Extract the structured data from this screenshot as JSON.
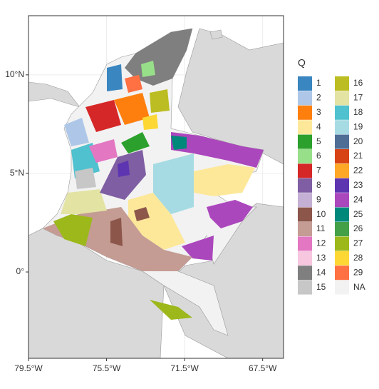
{
  "map": {
    "x_axis": {
      "lim": [
        -79.5,
        -66.43
      ],
      "ticks": [
        {
          "value": -79.5,
          "label": "79.5°W"
        },
        {
          "value": -75.5,
          "label": "75.5°W"
        },
        {
          "value": -71.5,
          "label": "71.5°W"
        },
        {
          "value": -67.5,
          "label": "67.5°W"
        }
      ]
    },
    "y_axis": {
      "lim": [
        -4.38,
        13.0
      ],
      "ticks": [
        {
          "value": 0,
          "label": "0°"
        },
        {
          "value": 5,
          "label": "5°N"
        },
        {
          "value": 10,
          "label": "10°N"
        }
      ]
    },
    "legend": {
      "title": "Q",
      "entries": [
        {
          "label": "1",
          "color": "#3a86c0"
        },
        {
          "label": "2",
          "color": "#aec7e8"
        },
        {
          "label": "3",
          "color": "#ff7f0e"
        },
        {
          "label": "4",
          "color": "#fde89a"
        },
        {
          "label": "5",
          "color": "#2ca02c"
        },
        {
          "label": "6",
          "color": "#98df8a"
        },
        {
          "label": "7",
          "color": "#d62728"
        },
        {
          "label": "8",
          "color": "#7f5ea3"
        },
        {
          "label": "9",
          "color": "#c5b0d5"
        },
        {
          "label": "10",
          "color": "#8c564b"
        },
        {
          "label": "11",
          "color": "#c49c94"
        },
        {
          "label": "12",
          "color": "#e377c2"
        },
        {
          "label": "13",
          "color": "#f7c6df"
        },
        {
          "label": "14",
          "color": "#7f7f7f"
        },
        {
          "label": "15",
          "color": "#c7c7c7"
        },
        {
          "label": "16",
          "color": "#bcbd22"
        },
        {
          "label": "17",
          "color": "#e3e3a3"
        },
        {
          "label": "18",
          "color": "#4fc1cf"
        },
        {
          "label": "19",
          "color": "#a6dbe3"
        },
        {
          "label": "20",
          "color": "#4e6e96"
        },
        {
          "label": "21",
          "color": "#d84315"
        },
        {
          "label": "22",
          "color": "#ffa726"
        },
        {
          "label": "23",
          "color": "#5e35b1"
        },
        {
          "label": "24",
          "color": "#ab47bc"
        },
        {
          "label": "25",
          "color": "#00897b"
        },
        {
          "label": "26",
          "color": "#43a047"
        },
        {
          "label": "27",
          "color": "#9cb81b"
        },
        {
          "label": "28",
          "color": "#fdd835"
        },
        {
          "label": "29",
          "color": "#ff7043"
        },
        {
          "label": "NA",
          "color": "#f2f2f2"
        }
      ]
    }
  }
}
